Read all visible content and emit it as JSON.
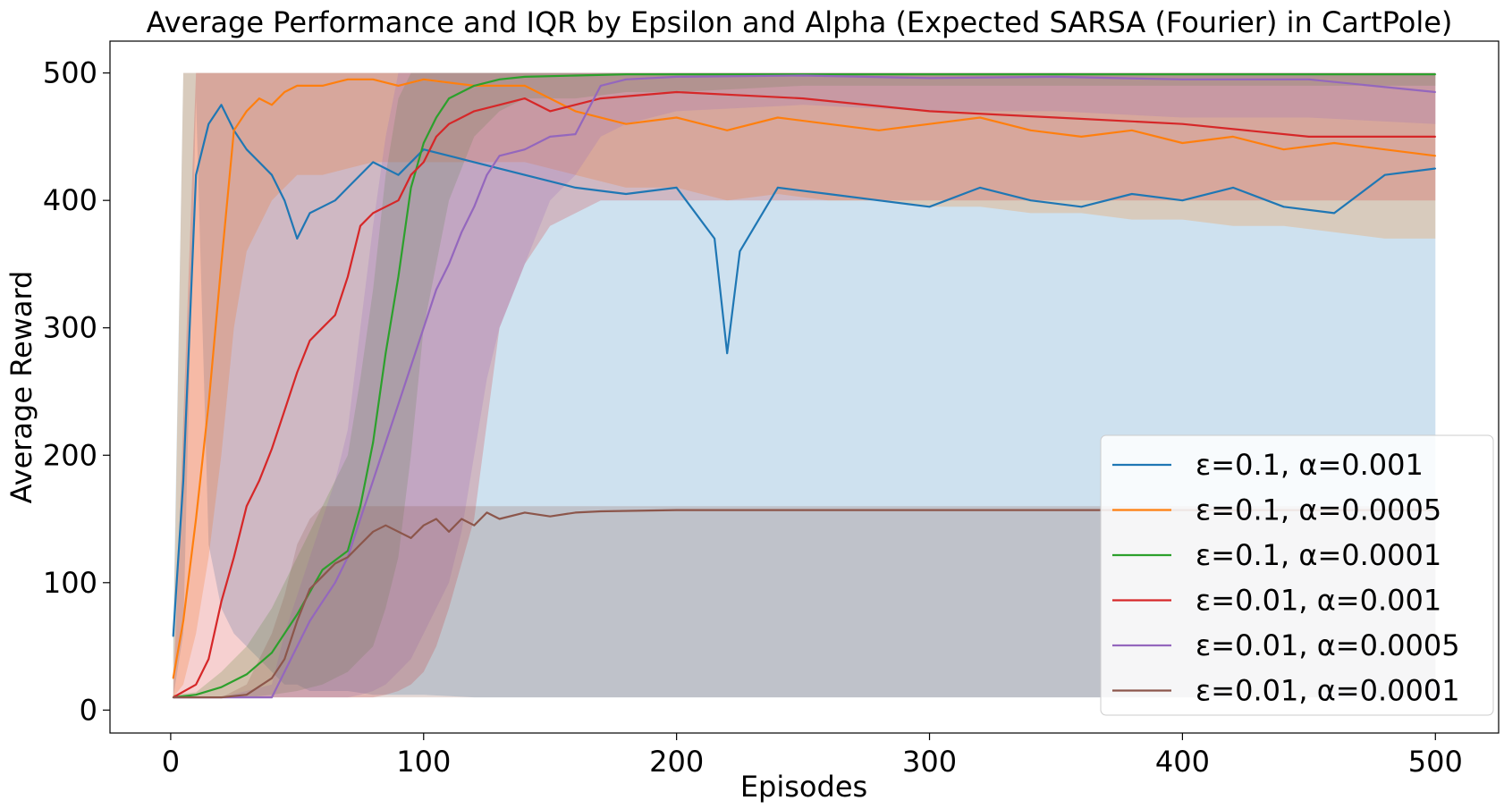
{
  "chart_data": {
    "type": "line",
    "title": "Average Performance and IQR by Epsilon and Alpha (Expected SARSA (Fourier) in CartPole)",
    "xlabel": "Episodes",
    "ylabel": "Average Reward",
    "xlim": [
      -24,
      525
    ],
    "ylim": [
      -18,
      525
    ],
    "x_ticks": [
      "0",
      "100",
      "200",
      "300",
      "400",
      "500"
    ],
    "y_ticks": [
      "0",
      "100",
      "200",
      "300",
      "400",
      "500"
    ],
    "grid": false,
    "legend_position": "lower-right",
    "band_description": "shaded IQR band per series",
    "series": [
      {
        "name": "ε=0.1, α=0.001",
        "color": "#1f77b4",
        "episodes": [
          1,
          5,
          10,
          15,
          20,
          25,
          30,
          35,
          40,
          45,
          50,
          55,
          60,
          65,
          70,
          80,
          90,
          100,
          120,
          140,
          160,
          180,
          200,
          215,
          220,
          225,
          240,
          260,
          280,
          300,
          320,
          340,
          360,
          380,
          400,
          420,
          440,
          460,
          480,
          500
        ],
        "mean": [
          58,
          180,
          420,
          460,
          475,
          455,
          440,
          430,
          420,
          400,
          370,
          390,
          395,
          400,
          410,
          430,
          420,
          440,
          430,
          420,
          410,
          405,
          410,
          370,
          280,
          360,
          410,
          405,
          400,
          395,
          410,
          400,
          395,
          405,
          400,
          410,
          395,
          390,
          420,
          425
        ],
        "iqr_low": [
          10,
          60,
          480,
          130,
          80,
          60,
          50,
          40,
          30,
          20,
          20,
          15,
          15,
          15,
          15,
          12,
          12,
          12,
          10,
          10,
          10,
          10,
          10,
          10,
          10,
          10,
          10,
          10,
          10,
          10,
          10,
          10,
          10,
          10,
          10,
          10,
          10,
          10,
          10,
          10
        ],
        "iqr_high": [
          60,
          500,
          500,
          500,
          500,
          500,
          500,
          500,
          500,
          500,
          500,
          500,
          500,
          500,
          500,
          500,
          500,
          500,
          500,
          500,
          500,
          500,
          500,
          500,
          500,
          500,
          500,
          500,
          500,
          500,
          500,
          500,
          500,
          500,
          500,
          500,
          500,
          500,
          500,
          500
        ]
      },
      {
        "name": "ε=0.1, α=0.0005",
        "color": "#ff7f0e",
        "episodes": [
          1,
          5,
          10,
          15,
          20,
          25,
          30,
          35,
          40,
          45,
          50,
          60,
          70,
          80,
          90,
          100,
          120,
          140,
          160,
          180,
          200,
          220,
          240,
          260,
          280,
          300,
          320,
          340,
          360,
          380,
          400,
          420,
          440,
          460,
          480,
          500
        ],
        "mean": [
          25,
          70,
          150,
          240,
          350,
          455,
          470,
          480,
          475,
          485,
          490,
          490,
          495,
          495,
          490,
          495,
          490,
          490,
          470,
          460,
          465,
          455,
          465,
          460,
          455,
          460,
          465,
          455,
          450,
          455,
          445,
          450,
          440,
          445,
          440,
          435
        ],
        "iqr_low": [
          10,
          20,
          60,
          120,
          200,
          300,
          360,
          380,
          400,
          410,
          420,
          420,
          425,
          430,
          430,
          430,
          430,
          430,
          420,
          410,
          410,
          400,
          405,
          400,
          400,
          395,
          395,
          390,
          390,
          385,
          385,
          380,
          380,
          375,
          370,
          370
        ],
        "iqr_high": [
          40,
          500,
          500,
          500,
          500,
          500,
          500,
          500,
          500,
          500,
          500,
          500,
          500,
          500,
          500,
          500,
          500,
          500,
          500,
          500,
          500,
          500,
          500,
          500,
          500,
          500,
          500,
          500,
          500,
          500,
          500,
          500,
          500,
          500,
          500,
          500
        ]
      },
      {
        "name": "ε=0.1, α=0.0001",
        "color": "#2ca02c",
        "episodes": [
          1,
          10,
          20,
          30,
          40,
          50,
          60,
          70,
          75,
          80,
          85,
          90,
          95,
          100,
          105,
          110,
          120,
          130,
          140,
          160,
          180,
          200,
          250,
          300,
          350,
          400,
          450,
          500
        ],
        "mean": [
          10,
          12,
          18,
          28,
          45,
          75,
          110,
          125,
          160,
          210,
          280,
          340,
          410,
          445,
          465,
          480,
          490,
          495,
          497,
          498,
          499,
          499,
          499,
          499,
          499,
          499,
          499,
          499
        ],
        "iqr_low": [
          10,
          10,
          10,
          10,
          12,
          15,
          20,
          30,
          40,
          50,
          80,
          120,
          200,
          300,
          350,
          400,
          450,
          470,
          480,
          480,
          485,
          485,
          490,
          490,
          490,
          490,
          490,
          490
        ],
        "iqr_high": [
          12,
          14,
          30,
          50,
          80,
          120,
          160,
          200,
          260,
          330,
          420,
          480,
          500,
          500,
          500,
          500,
          500,
          500,
          500,
          500,
          500,
          500,
          500,
          500,
          500,
          500,
          500,
          500
        ]
      },
      {
        "name": "ε=0.01, α=0.001",
        "color": "#d62728",
        "episodes": [
          1,
          10,
          15,
          20,
          25,
          30,
          35,
          40,
          45,
          50,
          55,
          60,
          65,
          70,
          75,
          80,
          85,
          90,
          95,
          100,
          105,
          110,
          120,
          130,
          140,
          150,
          170,
          200,
          250,
          300,
          350,
          400,
          450,
          500
        ],
        "mean": [
          10,
          20,
          40,
          85,
          120,
          160,
          180,
          205,
          235,
          265,
          290,
          300,
          310,
          340,
          380,
          390,
          395,
          400,
          420,
          430,
          450,
          460,
          470,
          475,
          480,
          470,
          480,
          485,
          480,
          470,
          465,
          460,
          450,
          450
        ],
        "iqr_low": [
          10,
          10,
          10,
          10,
          10,
          10,
          10,
          10,
          10,
          10,
          10,
          10,
          10,
          10,
          10,
          10,
          12,
          15,
          20,
          30,
          50,
          80,
          150,
          300,
          350,
          380,
          400,
          400,
          400,
          400,
          400,
          400,
          400,
          400
        ],
        "iqr_high": [
          10,
          500,
          500,
          500,
          500,
          500,
          500,
          500,
          500,
          500,
          500,
          500,
          500,
          500,
          500,
          500,
          500,
          500,
          500,
          500,
          500,
          500,
          500,
          500,
          500,
          500,
          500,
          500,
          500,
          500,
          500,
          500,
          500,
          500
        ]
      },
      {
        "name": "ε=0.01, α=0.0005",
        "color": "#9467bd",
        "episodes": [
          1,
          20,
          40,
          45,
          50,
          55,
          60,
          65,
          70,
          75,
          80,
          85,
          90,
          95,
          100,
          105,
          110,
          115,
          120,
          125,
          130,
          140,
          150,
          160,
          170,
          180,
          200,
          250,
          300,
          350,
          400,
          450,
          500
        ],
        "mean": [
          10,
          10,
          10,
          30,
          50,
          70,
          85,
          100,
          120,
          150,
          180,
          210,
          240,
          270,
          300,
          330,
          350,
          375,
          395,
          420,
          435,
          440,
          450,
          452,
          490,
          495,
          497,
          498,
          496,
          497,
          495,
          495,
          485
        ],
        "iqr_low": [
          10,
          10,
          10,
          10,
          10,
          10,
          10,
          10,
          10,
          12,
          15,
          20,
          30,
          40,
          60,
          80,
          100,
          140,
          200,
          260,
          300,
          350,
          400,
          420,
          450,
          460,
          470,
          475,
          470,
          470,
          465,
          465,
          460
        ],
        "iqr_high": [
          10,
          10,
          20,
          60,
          90,
          120,
          150,
          180,
          220,
          300,
          380,
          450,
          500,
          500,
          500,
          500,
          500,
          500,
          500,
          500,
          500,
          500,
          500,
          500,
          500,
          500,
          500,
          500,
          500,
          500,
          500,
          500,
          500
        ]
      },
      {
        "name": "ε=0.01, α=0.0001",
        "color": "#8c564b",
        "episodes": [
          1,
          20,
          30,
          40,
          45,
          50,
          55,
          60,
          65,
          70,
          75,
          80,
          85,
          90,
          95,
          100,
          105,
          110,
          115,
          120,
          125,
          130,
          140,
          150,
          160,
          170,
          200,
          250,
          300,
          350,
          400,
          450,
          500
        ],
        "mean": [
          10,
          10,
          12,
          25,
          40,
          70,
          95,
          105,
          115,
          120,
          130,
          140,
          145,
          140,
          135,
          145,
          150,
          140,
          150,
          145,
          155,
          150,
          155,
          152,
          155,
          156,
          157,
          157,
          157,
          157,
          157,
          157,
          157
        ],
        "iqr_low": [
          10,
          10,
          10,
          10,
          10,
          10,
          10,
          10,
          10,
          10,
          10,
          10,
          10,
          10,
          10,
          10,
          10,
          10,
          10,
          10,
          10,
          10,
          10,
          10,
          10,
          10,
          10,
          10,
          10,
          10,
          10,
          10,
          10
        ],
        "iqr_high": [
          10,
          10,
          20,
          60,
          90,
          130,
          150,
          160,
          160,
          160,
          160,
          160,
          160,
          160,
          160,
          160,
          160,
          160,
          160,
          160,
          160,
          160,
          160,
          160,
          160,
          160,
          160,
          160,
          160,
          160,
          160,
          160,
          160
        ]
      }
    ]
  }
}
